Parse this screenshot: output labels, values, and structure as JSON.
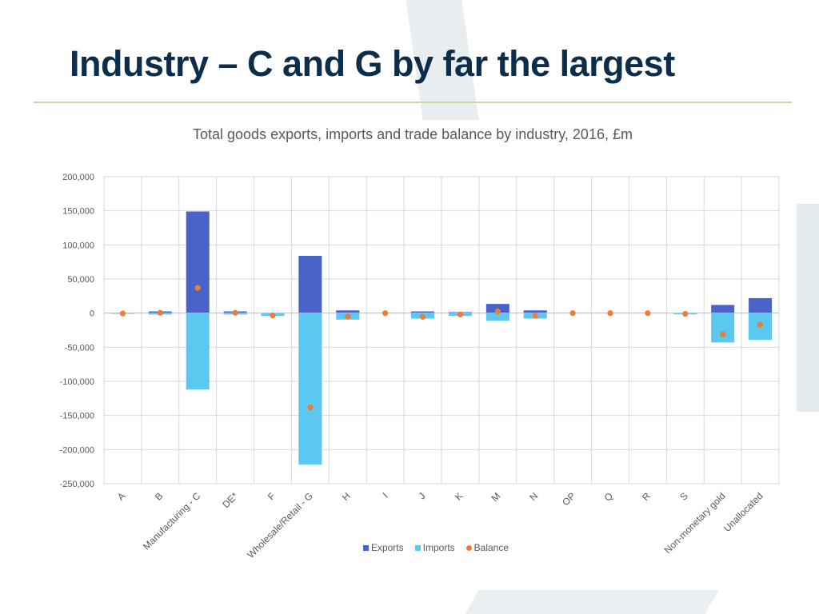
{
  "slide_title": "Industry – C and G by far the largest",
  "colors": {
    "exports": "#4a63c9",
    "imports": "#5bc8ef",
    "balance": "#ed7d31",
    "grid": "#d9d9d9",
    "axis_text": "#595959"
  },
  "chart_data": {
    "type": "bar",
    "title": "Total goods exports, imports and trade balance by industry, 2016, £m",
    "xlabel": "",
    "ylabel": "",
    "ylim": [
      -250000,
      200000
    ],
    "yticks": [
      200000,
      150000,
      100000,
      50000,
      0,
      -50000,
      -100000,
      -150000,
      -200000,
      -250000
    ],
    "ytick_labels": [
      "200,000",
      "150,000",
      "100,000",
      "50,000",
      "0",
      "-50,000",
      "-100,000",
      "-150,000",
      "-200,000",
      "-250,000"
    ],
    "categories": [
      "A",
      "B",
      "Manufacturing - C",
      "DE*",
      "F",
      "Wholesale/Retail - G",
      "H",
      "I",
      "J",
      "K",
      "M",
      "N",
      "OP",
      "Q",
      "R",
      "S",
      "Non-monetary gold",
      "Unallocated"
    ],
    "series": [
      {
        "name": "Exports",
        "kind": "bar",
        "values": [
          500,
          2500,
          149000,
          2500,
          0,
          84000,
          4000,
          0,
          2500,
          1500,
          13500,
          4000,
          0,
          0,
          0,
          500,
          12000,
          22000
        ]
      },
      {
        "name": "Imports",
        "kind": "bar",
        "values": [
          -1000,
          -2000,
          -112000,
          -2000,
          -4000,
          -222000,
          -9500,
          0,
          -8000,
          -4000,
          -11000,
          -8000,
          0,
          0,
          0,
          -1500,
          -43000,
          -39000
        ]
      },
      {
        "name": "Balance",
        "kind": "point",
        "values": [
          -500,
          500,
          37000,
          500,
          -3500,
          -138000,
          -5000,
          0,
          -5500,
          -2000,
          2500,
          -4000,
          0,
          0,
          0,
          -1000,
          -31000,
          -17000
        ]
      }
    ],
    "legend": [
      "Exports",
      "Imports",
      "Balance"
    ],
    "legend_position": "bottom",
    "grid": true
  }
}
